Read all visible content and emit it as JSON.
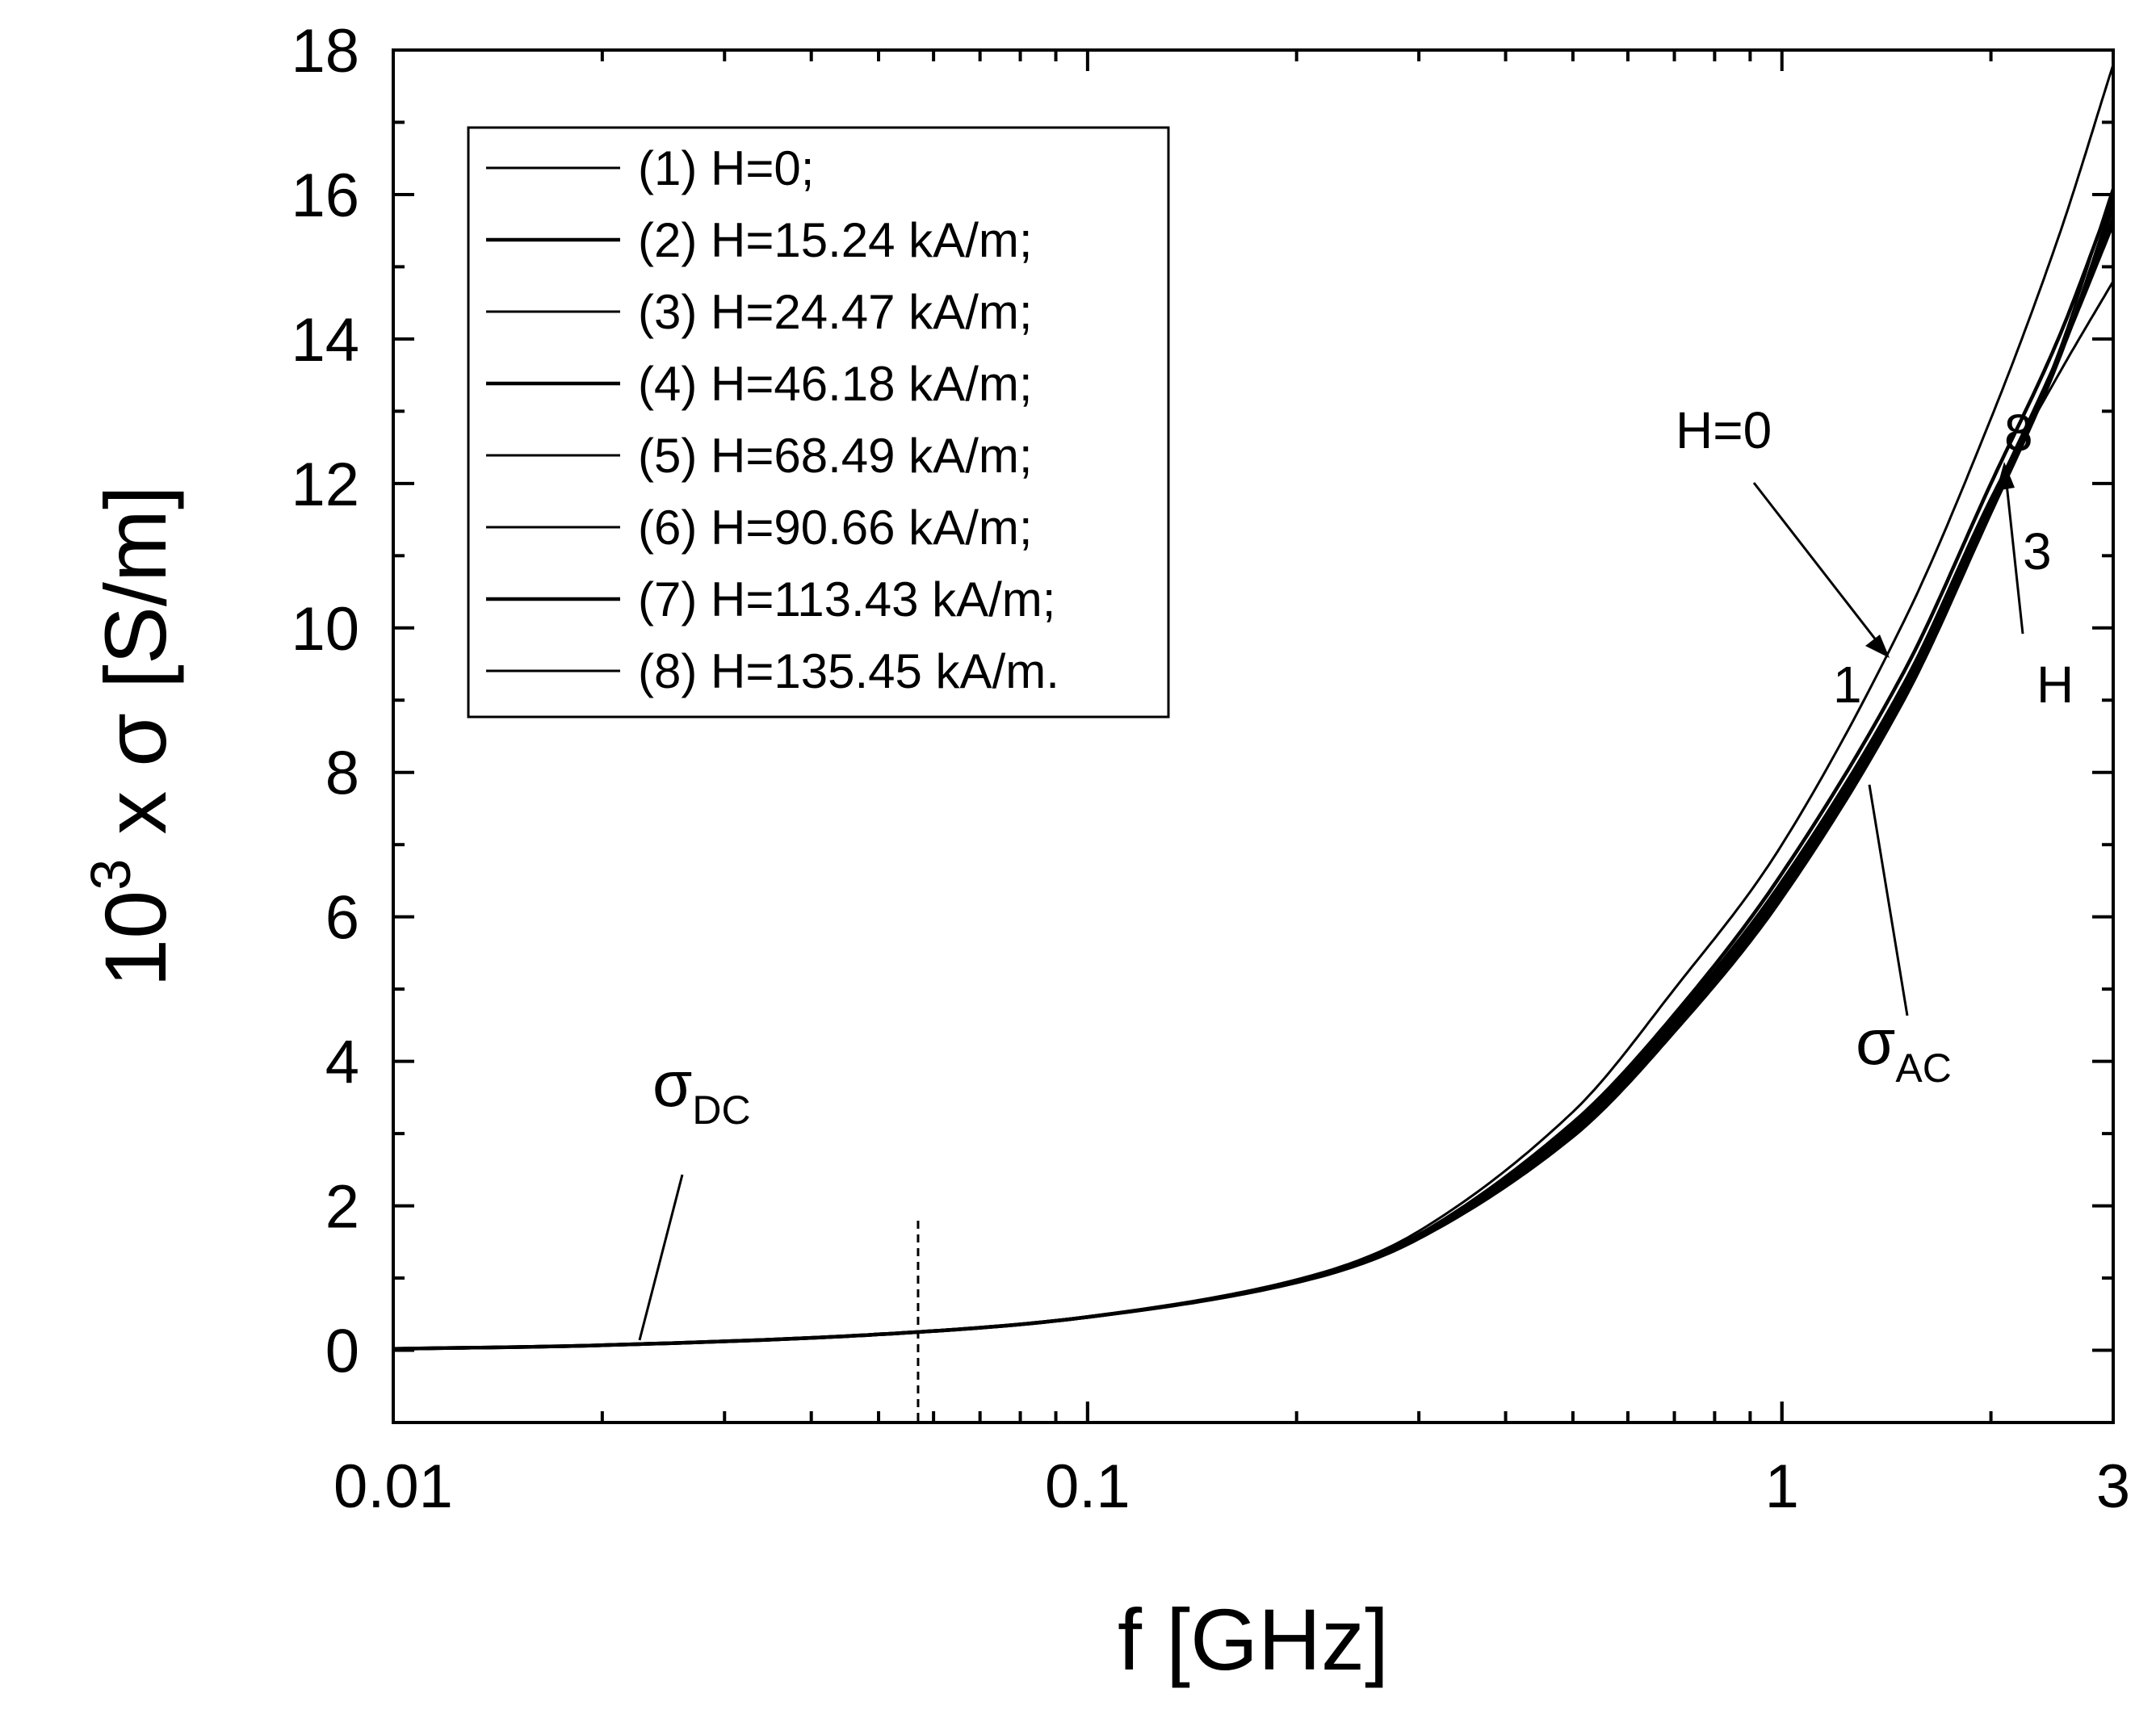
{
  "chart_data": {
    "type": "line",
    "title": "",
    "xlabel": "f [GHz]",
    "ylabel": "10^3 x σ [S/m]",
    "ylabel_parts": {
      "base": "10",
      "exp": "3",
      "rest": " x σ [S/m]"
    },
    "x_scale": "log",
    "xlim": [
      0.01,
      3
    ],
    "ylim": [
      -1,
      18
    ],
    "x_ticks": [
      0.01,
      0.1,
      1,
      3
    ],
    "x_tick_labels": [
      "0.01",
      "0.1",
      "1",
      "3"
    ],
    "y_ticks": [
      0,
      2,
      4,
      6,
      8,
      10,
      12,
      14,
      16,
      18
    ],
    "y_tick_labels": [
      "0",
      "2",
      "4",
      "6",
      "8",
      "10",
      "12",
      "14",
      "16",
      "18"
    ],
    "grid": false,
    "legend_position": "top-left",
    "series": [
      {
        "name": "(1) H=0;",
        "x": [
          0.01,
          0.02,
          0.05,
          0.1,
          0.2,
          0.3,
          0.5,
          0.7,
          1.0,
          1.5,
          2.0,
          2.5,
          3.0
        ],
        "y": [
          0.02,
          0.07,
          0.22,
          0.47,
          0.98,
          1.65,
          3.3,
          5.0,
          7.0,
          10.1,
          12.9,
          15.4,
          17.8
        ]
      },
      {
        "name": "(2) H=15.24 kA/m;",
        "x": [
          0.01,
          0.02,
          0.05,
          0.1,
          0.2,
          0.3,
          0.5,
          0.7,
          1.0,
          1.5,
          2.0,
          2.5,
          3.0
        ],
        "y": [
          0.02,
          0.07,
          0.22,
          0.46,
          0.96,
          1.6,
          3.15,
          4.65,
          6.6,
          9.4,
          12.0,
          14.0,
          16.0
        ]
      },
      {
        "name": "(3) H=24.47 kA/m;",
        "x": [
          0.01,
          0.02,
          0.05,
          0.1,
          0.2,
          0.3,
          0.5,
          0.7,
          1.0,
          1.5,
          2.0,
          2.5,
          3.0
        ],
        "y": [
          0.02,
          0.07,
          0.22,
          0.46,
          0.95,
          1.58,
          3.1,
          4.6,
          6.5,
          9.25,
          11.8,
          13.5,
          14.8
        ]
      },
      {
        "name": "(4) H=46.18 kA/m;",
        "x": [
          0.01,
          0.02,
          0.05,
          0.1,
          0.2,
          0.3,
          0.5,
          0.7,
          1.0,
          1.5,
          2.0,
          2.5,
          3.0
        ],
        "y": [
          0.02,
          0.07,
          0.22,
          0.46,
          0.95,
          1.57,
          3.05,
          4.55,
          6.45,
          9.2,
          11.75,
          13.75,
          15.6
        ]
      },
      {
        "name": "(5) H=68.49 kA/m;",
        "x": [
          0.01,
          0.02,
          0.05,
          0.1,
          0.2,
          0.3,
          0.5,
          0.7,
          1.0,
          1.5,
          2.0,
          2.5,
          3.0
        ],
        "y": [
          0.02,
          0.07,
          0.22,
          0.46,
          0.95,
          1.56,
          3.05,
          4.5,
          6.4,
          9.15,
          11.7,
          13.7,
          15.7
        ]
      },
      {
        "name": "(6) H=90.66 kA/m;",
        "x": [
          0.01,
          0.02,
          0.05,
          0.1,
          0.2,
          0.3,
          0.5,
          0.7,
          1.0,
          1.5,
          2.0,
          2.5,
          3.0
        ],
        "y": [
          0.02,
          0.07,
          0.22,
          0.46,
          0.94,
          1.55,
          3.0,
          4.5,
          6.35,
          9.1,
          11.65,
          13.7,
          15.8
        ]
      },
      {
        "name": "(7) H=113.43 kA/m;",
        "x": [
          0.01,
          0.02,
          0.05,
          0.1,
          0.2,
          0.3,
          0.5,
          0.7,
          1.0,
          1.5,
          2.0,
          2.5,
          3.0
        ],
        "y": [
          0.02,
          0.07,
          0.22,
          0.46,
          0.94,
          1.55,
          3.0,
          4.45,
          6.3,
          9.05,
          11.6,
          13.7,
          15.9
        ]
      },
      {
        "name": "(8) H=135.45 kA/m.",
        "x": [
          0.01,
          0.02,
          0.05,
          0.1,
          0.2,
          0.3,
          0.5,
          0.7,
          1.0,
          1.5,
          2.0,
          2.5,
          3.0
        ],
        "y": [
          0.02,
          0.07,
          0.22,
          0.46,
          0.94,
          1.54,
          2.95,
          4.4,
          6.25,
          9.0,
          11.6,
          13.8,
          16.1
        ]
      }
    ],
    "annotations": {
      "h0_label": "H=0",
      "curve1_label": "1",
      "curve8_label": "8",
      "curve3_label": "3",
      "h_label": "H",
      "sigma_dc": {
        "symbol": "σ",
        "sub": "DC"
      },
      "sigma_ac": {
        "symbol": "σ",
        "sub": "AC"
      },
      "dashed_marker_x": 0.057
    },
    "colors": {
      "line": "#000000",
      "background": "#ffffff"
    }
  }
}
